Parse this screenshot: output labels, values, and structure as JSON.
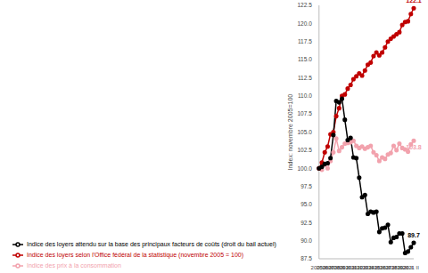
{
  "chart_data": {
    "type": "line",
    "y_label": "Index: novembre 2005=100",
    "categories": [
      "2005 II",
      null,
      "2006 II",
      null,
      "2007 II",
      null,
      "2008 II",
      null,
      "2009 II",
      null,
      "2010 II",
      null,
      "2011 II",
      null,
      "2012 II",
      null,
      "2013 II",
      null,
      "2014 II",
      null,
      "2015 II",
      null,
      "2016 II",
      null,
      "2017 II",
      null,
      "2018 II",
      null,
      "2019 II",
      null,
      "2020 II",
      null,
      "2021 II",
      null
    ],
    "series": [
      {
        "name": "Indice des prix à la consommation",
        "color": "#f2a2ad",
        "marker": "circle",
        "line_style": "solid",
        "values": [
          100,
          99.8,
          100.5,
          100,
          101,
          102.2,
          104.1,
          102.4,
          102.9,
          103.4,
          103.5,
          103.6,
          103.8,
          103.1,
          102.8,
          103.0,
          102.7,
          102.9,
          103.1,
          102.2,
          101.8,
          101.0,
          101.5,
          101.3,
          101.9,
          102.1,
          103.1,
          102.5,
          103.4,
          102.8,
          102.6,
          102.3,
          103.3,
          103.8
        ],
        "value_labels": [
          null,
          null,
          null,
          null,
          null,
          null,
          null,
          null,
          null,
          null,
          null,
          null,
          null,
          null,
          null,
          null,
          null,
          null,
          null,
          null,
          null,
          null,
          null,
          null,
          null,
          null,
          null,
          null,
          null,
          null,
          null,
          null,
          null,
          "103.8"
        ]
      },
      {
        "name": "Indice des loyers selon l'Office fédéral de la statistique (novembre 2005 = 100)",
        "color": "#c00000",
        "marker": "circle",
        "line_style": "solid",
        "values": [
          100,
          100.8,
          102.2,
          103.0,
          104.7,
          105.0,
          107.2,
          108.3,
          110.0,
          110.2,
          111.0,
          111.5,
          112.3,
          112.7,
          113.1,
          112.8,
          113.5,
          114.3,
          114.6,
          115.5,
          116.0,
          115.6,
          116.0,
          116.7,
          117.5,
          117.9,
          118.2,
          118.5,
          118.8,
          119.8,
          120.2,
          120.3,
          121.3,
          122.1
        ],
        "value_labels": [
          null,
          null,
          null,
          null,
          null,
          null,
          null,
          null,
          null,
          null,
          null,
          null,
          null,
          null,
          null,
          null,
          null,
          null,
          null,
          null,
          null,
          null,
          null,
          null,
          null,
          null,
          null,
          null,
          null,
          null,
          null,
          null,
          null,
          "122.1"
        ]
      },
      {
        "name": "Indice des loyers attendu sur la base des principaux facteurs de coûts (droit du bail actuel)",
        "color": "#000000",
        "marker": "circle",
        "line_style": "solid",
        "values": [
          100,
          100.2,
          100.6,
          100.7,
          101.4,
          104.6,
          109.3,
          109.1,
          109.6,
          106.7,
          103.9,
          104.2,
          101.5,
          101.4,
          98.7,
          96.0,
          96.3,
          93.7,
          94.0,
          93.9,
          94.0,
          91.2,
          91.7,
          91.8,
          92.2,
          89.8,
          90.4,
          90.5,
          91.0,
          91.0,
          88.3,
          88.5,
          89.1,
          89.7
        ],
        "value_labels": [
          null,
          null,
          null,
          null,
          null,
          null,
          null,
          null,
          null,
          null,
          null,
          null,
          null,
          null,
          null,
          null,
          null,
          null,
          null,
          null,
          null,
          null,
          null,
          null,
          null,
          null,
          null,
          null,
          null,
          null,
          null,
          null,
          null,
          "89.7"
        ]
      }
    ],
    "ylim": [
      87.5,
      122.5
    ],
    "yticks": [
      87.5,
      {
        "value": 90,
        "label": "90.0"
      },
      92.5,
      {
        "value": 95,
        "label": "95.0"
      },
      97.5,
      {
        "value": 100,
        "label": "100.0"
      },
      102.5,
      {
        "value": 105,
        "label": "105.0"
      },
      107.5,
      {
        "value": 110,
        "label": "110.0"
      },
      112.5,
      {
        "value": 115,
        "label": "115.0"
      },
      117.5,
      {
        "value": 120,
        "label": "120.0"
      },
      122.5
    ],
    "grid": false,
    "legend": "bottom-left"
  }
}
